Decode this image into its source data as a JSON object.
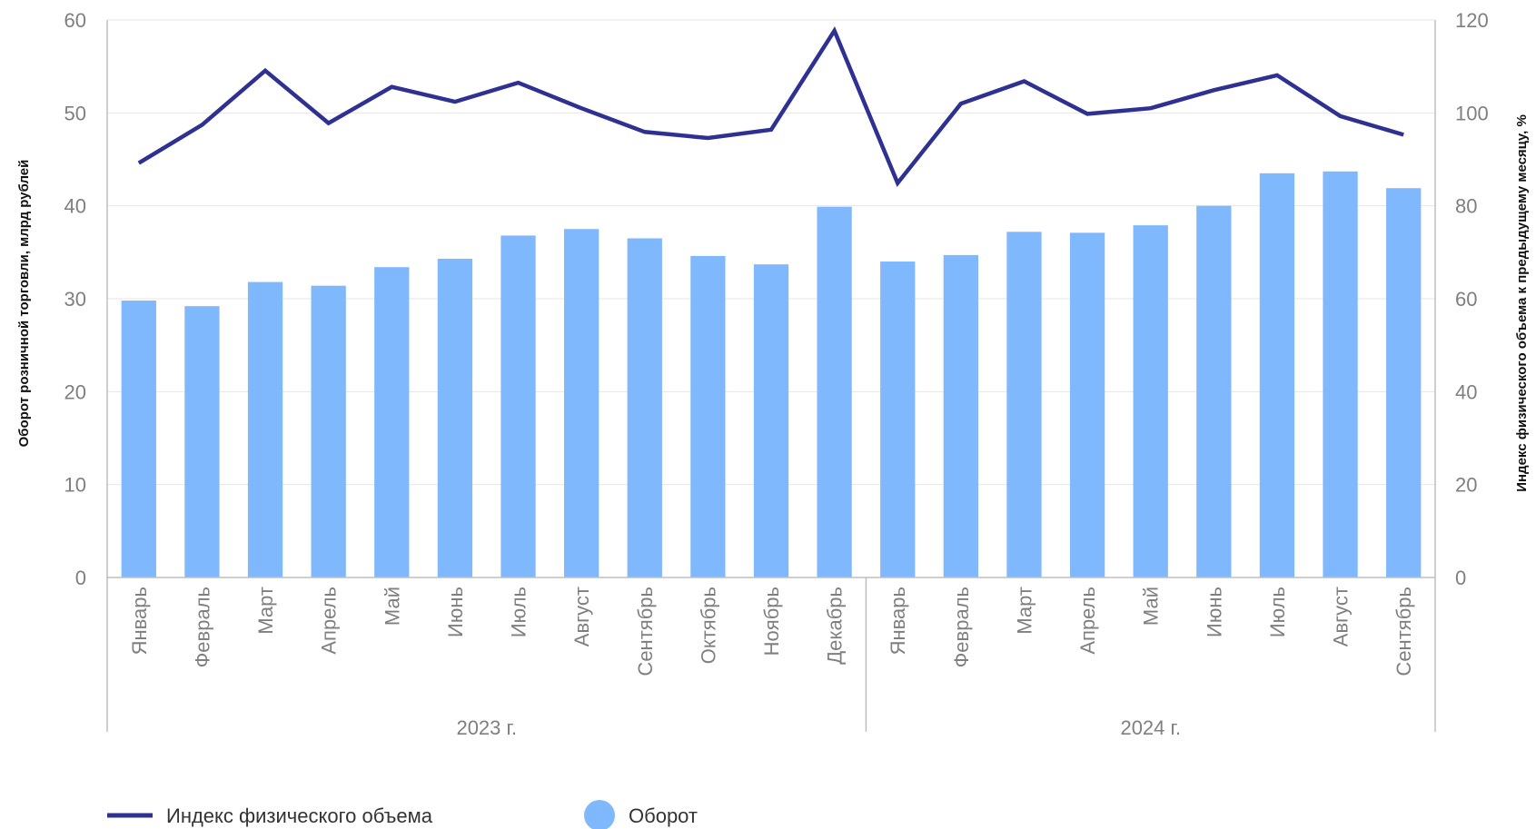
{
  "chart_data": {
    "type": "bar",
    "categories": [
      "Январь",
      "Февраль",
      "Март",
      "Апрель",
      "Май",
      "Июнь",
      "Июль",
      "Август",
      "Сентябрь",
      "Октябрь",
      "Ноябрь",
      "Декабрь",
      "Январь",
      "Февраль",
      "Март",
      "Апрель",
      "Май",
      "Июнь",
      "Июль",
      "Август",
      "Сентябрь"
    ],
    "groups": [
      {
        "label": "2023 г.",
        "count": 12
      },
      {
        "label": "2024 г.",
        "count": 9
      }
    ],
    "series": [
      {
        "name": "Оборот",
        "type": "bar",
        "axis": "left",
        "color": "#7fb8fc",
        "values": [
          29.8,
          29.2,
          31.8,
          31.4,
          33.4,
          34.3,
          36.8,
          37.5,
          36.5,
          34.6,
          33.7,
          39.9,
          34.0,
          34.7,
          37.2,
          37.1,
          37.9,
          40.0,
          43.5,
          43.7,
          41.9
        ]
      },
      {
        "name": "Индекс физического объема",
        "type": "line",
        "axis": "right",
        "color": "#2e3192",
        "values": [
          89.2,
          97.4,
          109.1,
          97.8,
          105.6,
          102.4,
          106.5,
          101.0,
          95.9,
          94.6,
          96.4,
          117.7,
          84.9,
          102.0,
          106.8,
          99.8,
          101.0,
          104.9,
          108.1,
          99.3,
          95.3
        ]
      }
    ],
    "y_left": {
      "label": "Оборот розничной торговли, млрд рублей",
      "min": 0,
      "max": 60,
      "ticks": [
        0,
        10,
        20,
        30,
        40,
        50,
        60
      ]
    },
    "y_right": {
      "label": "Индекс физического объема к предыдущему месяцу, %",
      "min": 0,
      "max": 120,
      "ticks": [
        0,
        20,
        40,
        60,
        80,
        100,
        120
      ]
    },
    "grid": true,
    "legend_position": "bottom-left"
  }
}
